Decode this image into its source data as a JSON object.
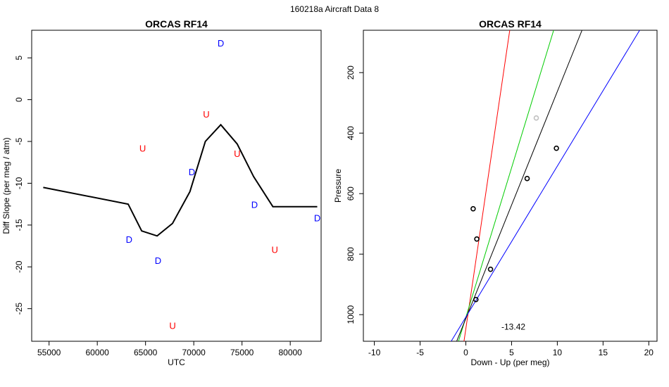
{
  "page_title": "160218a   Aircraft Data 8",
  "chart_data": [
    {
      "type": "line",
      "title": "ORCAS RF14",
      "xlabel": "UTC",
      "ylabel": "Diff Slope (per meg / atm)",
      "xlim": [
        53200,
        83200
      ],
      "ylim": [
        -28.9,
        8.3
      ],
      "xticks": [
        55000,
        60000,
        65000,
        70000,
        75000,
        80000
      ],
      "xtick_labels": [
        "55000",
        "60000",
        "65000",
        "70000",
        "75000",
        "80000"
      ],
      "yticks": [
        5,
        0,
        -5,
        -10,
        -15,
        -20,
        -25
      ],
      "ytick_labels": [
        "5",
        "0",
        "-5",
        "-10",
        "-15",
        "-20",
        "-25"
      ],
      "line": {
        "color": "#000000",
        "x": [
          54400,
          63200,
          64600,
          66200,
          67800,
          69600,
          71200,
          72800,
          74500,
          76200,
          78200,
          82800
        ],
        "y": [
          -10.5,
          -12.5,
          -15.7,
          -16.3,
          -14.8,
          -11.0,
          -5.0,
          -3.0,
          -5.3,
          -9.2,
          -12.8,
          -12.8
        ]
      },
      "points": [
        {
          "label": "D",
          "color": "#0000ff",
          "x": 72800,
          "y": 6.7
        },
        {
          "label": "U",
          "color": "#ff0000",
          "x": 71300,
          "y": -1.8
        },
        {
          "label": "U",
          "color": "#ff0000",
          "x": 64700,
          "y": -5.9
        },
        {
          "label": "U",
          "color": "#ff0000",
          "x": 74500,
          "y": -6.5
        },
        {
          "label": "D",
          "color": "#0000ff",
          "x": 69800,
          "y": -8.7
        },
        {
          "label": "D",
          "color": "#0000ff",
          "x": 76300,
          "y": -12.6
        },
        {
          "label": "D",
          "color": "#0000ff",
          "x": 82800,
          "y": -14.2
        },
        {
          "label": "D",
          "color": "#0000ff",
          "x": 63300,
          "y": -16.8
        },
        {
          "label": "U",
          "color": "#ff0000",
          "x": 78400,
          "y": -18.0
        },
        {
          "label": "D",
          "color": "#0000ff",
          "x": 66300,
          "y": -19.3
        },
        {
          "label": "U",
          "color": "#ff0000",
          "x": 67800,
          "y": -27.1
        }
      ]
    },
    {
      "type": "scatter",
      "title": "ORCAS RF14",
      "xlabel": "Down - Up (per meg)",
      "ylabel": "Pressure",
      "xlim": [
        -11.2,
        20.9
      ],
      "ylim": [
        1088,
        60
      ],
      "xticks": [
        -10,
        -5,
        0,
        5,
        10,
        15,
        20
      ],
      "xtick_labels": [
        "-10",
        "-5",
        "0",
        "5",
        "10",
        "15",
        "20"
      ],
      "yticks": [
        200,
        400,
        600,
        800,
        1000
      ],
      "ytick_labels": [
        "200",
        "400",
        "600",
        "800",
        "1000"
      ],
      "points": [
        {
          "x": 7.7,
          "y": 350,
          "color": "#c0c0c0"
        },
        {
          "x": 9.9,
          "y": 450,
          "color": "#000000"
        },
        {
          "x": 6.7,
          "y": 550,
          "color": "#000000"
        },
        {
          "x": 0.8,
          "y": 650,
          "color": "#000000"
        },
        {
          "x": 1.2,
          "y": 750,
          "color": "#000000"
        },
        {
          "x": 2.7,
          "y": 850,
          "color": "#000000"
        },
        {
          "x": 1.1,
          "y": 950,
          "color": "#000000"
        }
      ],
      "lines": [
        {
          "color": "#ff0000",
          "x": [
            -0.2,
            4.8
          ],
          "y": [
            1088,
            60
          ]
        },
        {
          "color": "#00cc00",
          "x": [
            -0.8,
            9.6
          ],
          "y": [
            1088,
            60
          ]
        },
        {
          "color": "#000000",
          "x": [
            -1.0,
            12.7
          ],
          "y": [
            1088,
            60
          ]
        },
        {
          "color": "#0000ff",
          "x": [
            -1.6,
            19.0
          ],
          "y": [
            1088,
            60
          ]
        }
      ],
      "annotation": {
        "text": "-13.42",
        "x": 5.2,
        "y": 1040
      }
    }
  ]
}
